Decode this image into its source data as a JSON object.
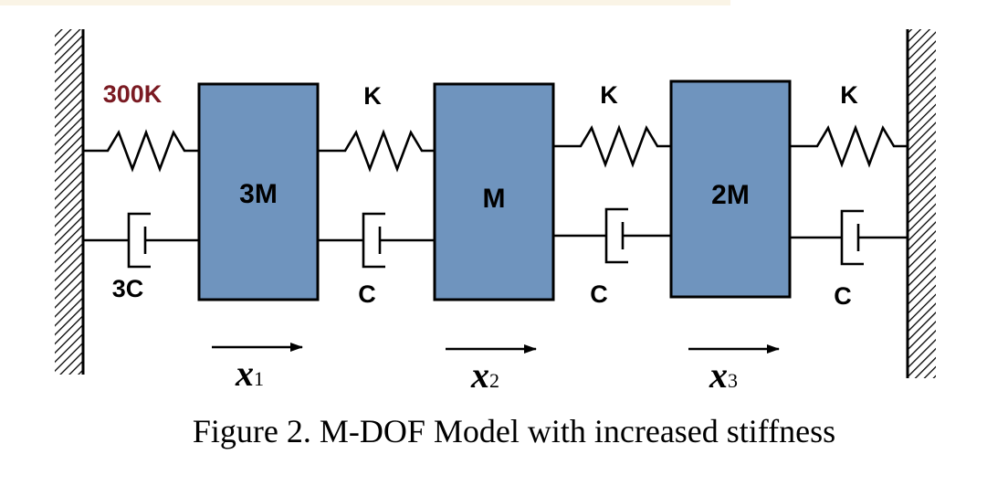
{
  "caption": "Figure 2. M-DOF Model with increased stiffness",
  "colors": {
    "mass_fill": "#6f94be",
    "line": "#000000",
    "highlight_label": "#7a1a22",
    "top_band": "#faf4e6"
  },
  "masses": [
    {
      "label": "3M"
    },
    {
      "label": "M"
    },
    {
      "label": "2M"
    }
  ],
  "springs": [
    {
      "label": "300K",
      "highlight": true
    },
    {
      "label": "K"
    },
    {
      "label": "K"
    },
    {
      "label": "K"
    }
  ],
  "dampers": [
    {
      "label": "3C"
    },
    {
      "label": "C"
    },
    {
      "label": "C"
    },
    {
      "label": "C"
    }
  ],
  "displacements": [
    {
      "symbol": "x",
      "subscript": "1"
    },
    {
      "symbol": "x",
      "subscript": "2"
    },
    {
      "symbol": "x",
      "subscript": "3"
    }
  ],
  "icons": {
    "wall": "hatched-wall-icon",
    "spring": "spring-icon",
    "damper": "damper-icon",
    "arrow": "arrow-right-icon"
  }
}
